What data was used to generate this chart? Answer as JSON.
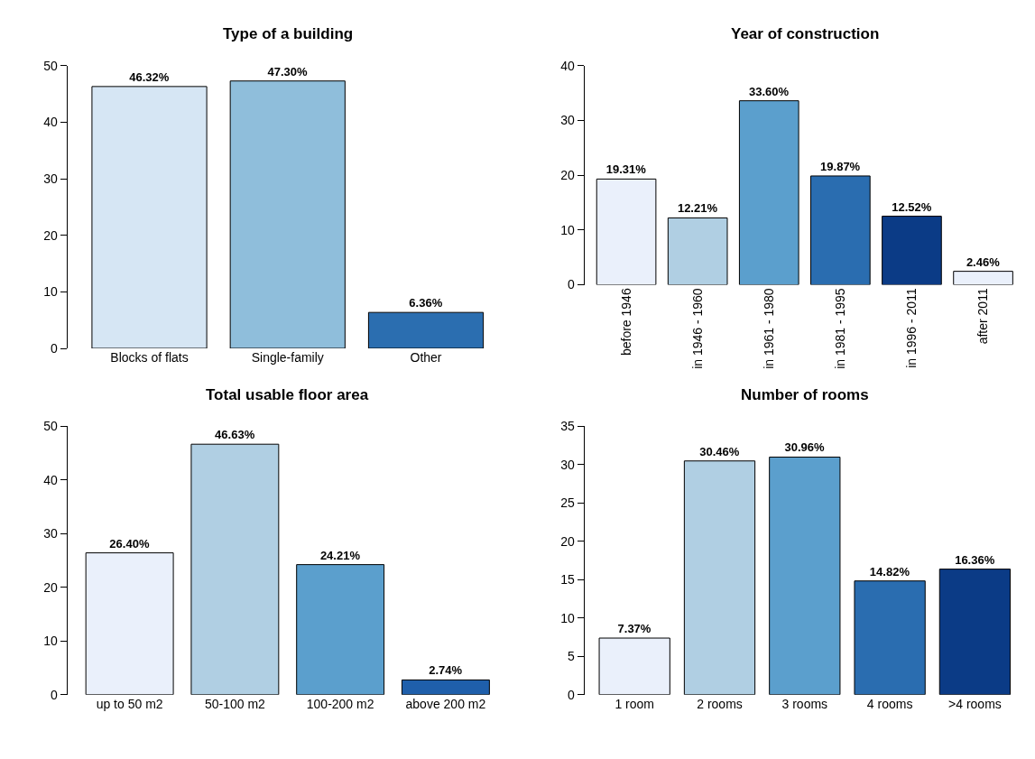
{
  "chart_data": [
    {
      "type": "bar",
      "title": "Type of a building",
      "categories": [
        "Blocks of flats",
        "Single-family",
        "Other"
      ],
      "values": [
        46.32,
        47.3,
        6.36
      ],
      "value_labels": [
        "46.32%",
        "47.30%",
        "6.36%"
      ],
      "colors": [
        "#d6e6f4",
        "#8fbedb",
        "#2b6eb0"
      ],
      "ylim": [
        0,
        50
      ],
      "yticks": [
        0,
        10,
        20,
        30,
        40,
        50
      ]
    },
    {
      "type": "bar",
      "title": "Year of construction",
      "categories": [
        "before 1946",
        "in 1946 - 1960",
        "in 1961 - 1980",
        "in 1981 - 1995",
        "in 1996 - 2011",
        "after 2011"
      ],
      "values": [
        19.31,
        12.21,
        33.6,
        19.87,
        12.52,
        2.46
      ],
      "value_labels": [
        "19.31%",
        "12.21%",
        "33.60%",
        "19.87%",
        "12.52%",
        "2.46%"
      ],
      "colors": [
        "#eaf0fb",
        "#b0cfe3",
        "#5b9fcd",
        "#2a6db0",
        "#0b3b86",
        "#eaf0fb"
      ],
      "ylim": [
        0,
        40
      ],
      "yticks": [
        0,
        10,
        20,
        30,
        40
      ]
    },
    {
      "type": "bar",
      "title": "Total usable floor area",
      "categories": [
        "up to 50 m2",
        "50-100 m2",
        "100-200 m2",
        "above 200 m2"
      ],
      "values": [
        26.4,
        46.63,
        24.21,
        2.74
      ],
      "value_labels": [
        "26.40%",
        "46.63%",
        "24.21%",
        "2.74%"
      ],
      "colors": [
        "#eaf0fb",
        "#b0cfe3",
        "#5b9fcd",
        "#1f5fab"
      ],
      "ylim": [
        0,
        50
      ],
      "yticks": [
        0,
        10,
        20,
        30,
        40,
        50
      ]
    },
    {
      "type": "bar",
      "title": "Number of rooms",
      "categories": [
        "1 room",
        "2 rooms",
        "3 rooms",
        "4 rooms",
        ">4 rooms"
      ],
      "values": [
        7.37,
        30.46,
        30.96,
        14.82,
        16.36
      ],
      "value_labels": [
        "7.37%",
        "30.46%",
        "30.96%",
        "14.82%",
        "16.36%"
      ],
      "colors": [
        "#eaf0fb",
        "#b0cfe3",
        "#5b9fcd",
        "#2a6db0",
        "#0b3b86"
      ],
      "ylim": [
        0,
        35
      ],
      "yticks": [
        0,
        5,
        10,
        15,
        20,
        25,
        30,
        35
      ]
    }
  ]
}
